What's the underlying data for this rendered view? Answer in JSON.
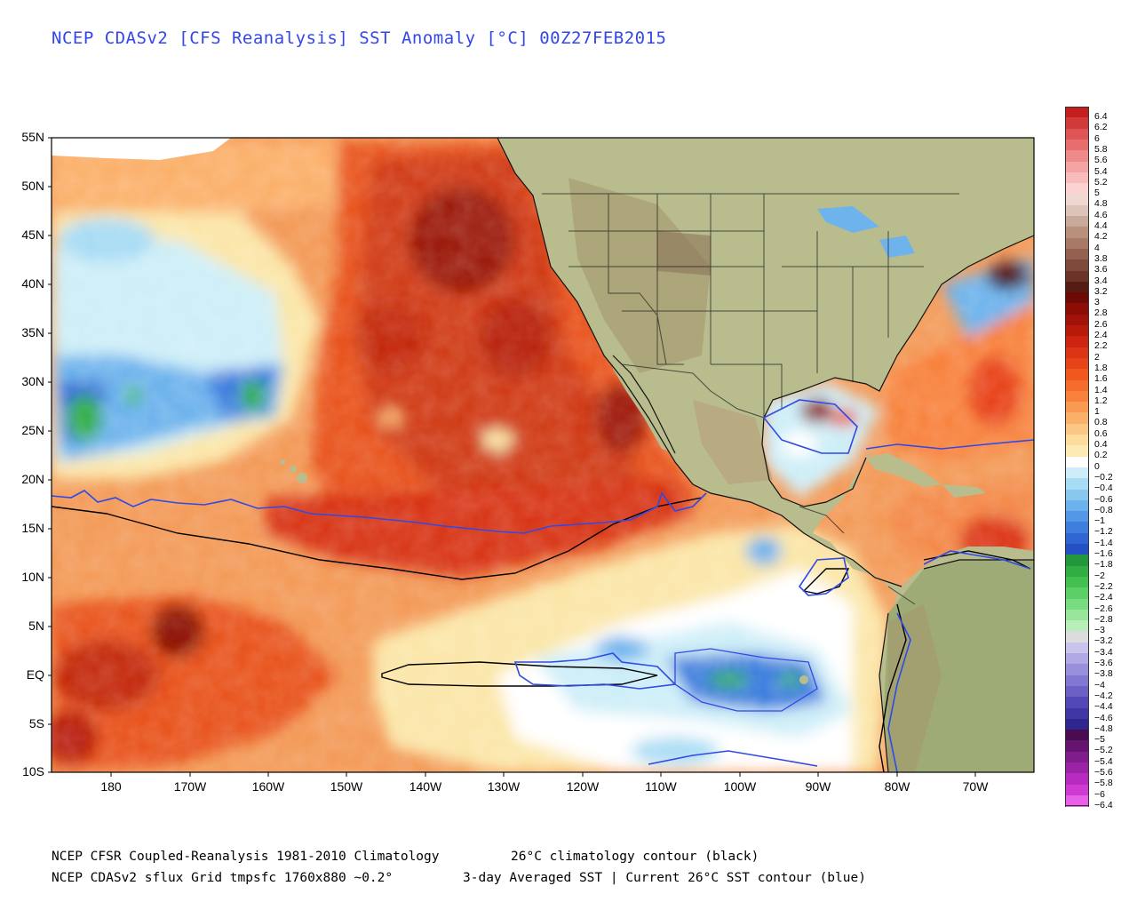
{
  "title": "NCEP CDASv2 [CFS Reanalysis] SST Anomaly [°C] 00Z27FEB2015",
  "map": {
    "lat_labels": [
      "55N",
      "50N",
      "45N",
      "40N",
      "35N",
      "30N",
      "25N",
      "20N",
      "15N",
      "10N",
      "5N",
      "EQ",
      "5S",
      "10S"
    ],
    "lon_labels": [
      "180",
      "170W",
      "160W",
      "150W",
      "140W",
      "130W",
      "120W",
      "110W",
      "100W",
      "90W",
      "80W",
      "70W"
    ],
    "colors": {
      "land": "#b9bd8e",
      "land_dark": "#9c9a6e",
      "mountain": "#a08a66",
      "warm_strong": "#c8280c",
      "warm": "#e8531e",
      "warm_mid": "#f4894a",
      "warm_light": "#f9bf7c",
      "pale": "#fbe6a8",
      "neutral": "#ffffff",
      "cool_light": "#b8e6f4",
      "cool": "#6fb3ec",
      "cool_strong": "#2f62d6",
      "green": "#33b845",
      "clim_contour": "#000000",
      "sst_contour": "#2f4ae6"
    }
  },
  "legend": {
    "labels": [
      "6.4",
      "6.2",
      "6",
      "5.8",
      "5.6",
      "5.4",
      "5.2",
      "5",
      "4.8",
      "4.6",
      "4.4",
      "4.2",
      "4",
      "3.8",
      "3.6",
      "3.4",
      "3.2",
      "3",
      "2.8",
      "2.6",
      "2.4",
      "2.2",
      "2",
      "1.8",
      "1.6",
      "1.4",
      "1.2",
      "1",
      "0.8",
      "0.6",
      "0.4",
      "0.2",
      "0",
      "−0.2",
      "−0.4",
      "−0.6",
      "−0.8",
      "−1",
      "−1.2",
      "−1.4",
      "−1.6",
      "−1.8",
      "−2",
      "−2.2",
      "−2.4",
      "−2.6",
      "−2.8",
      "−3",
      "−3.2",
      "−3.4",
      "−3.6",
      "−3.8",
      "−4",
      "−4.2",
      "−4.4",
      "−4.6",
      "−4.8",
      "−5",
      "−5.2",
      "−5.4",
      "−5.6",
      "−5.8",
      "−6",
      "−6.4"
    ],
    "colors": [
      "#c41e1e",
      "#d23a3a",
      "#df5454",
      "#e86e6e",
      "#ef8a8a",
      "#f4a4a4",
      "#f8bcbc",
      "#fbd2cf",
      "#f0d8d0",
      "#dcc4b8",
      "#c9aa9a",
      "#b8907c",
      "#a87a66",
      "#946050",
      "#7e4a3c",
      "#6a3428",
      "#561c14",
      "#6e0a06",
      "#8c0c06",
      "#a31208",
      "#b81a0a",
      "#cc2410",
      "#dc3414",
      "#e8441a",
      "#f0581e",
      "#f56c2c",
      "#f8823c",
      "#fa9a52",
      "#fbb06a",
      "#fcc684",
      "#fddc9c",
      "#fdeab4",
      "#ffffff",
      "#cdeef8",
      "#a8dcf4",
      "#88c8f0",
      "#6cb2ec",
      "#5398e6",
      "#3d7ede",
      "#2f66d4",
      "#2450c6",
      "#22963a",
      "#30ae44",
      "#44c050",
      "#5cd066",
      "#78dc80",
      "#98e69c",
      "#b8eeb8",
      "#dcdcdc",
      "#c8c4ec",
      "#b0a8e4",
      "#9890dc",
      "#8078d2",
      "#6a60c6",
      "#5448b8",
      "#4036a6",
      "#302690",
      "#4a0c50",
      "#661470",
      "#801c8c",
      "#9a22a6",
      "#b82ac0",
      "#d03ad4",
      "#e860e8"
    ]
  },
  "footer": {
    "line1_left": "NCEP CFSR Coupled-Reanalysis 1981-2010 Climatology",
    "line1_right": "26°C climatology contour (black)",
    "line2_left": "NCEP CDASv2 sflux Grid tmpsfc 1760x880 ~0.2°",
    "line2_right": "3-day Averaged SST | Current 26°C SST contour (blue)"
  }
}
